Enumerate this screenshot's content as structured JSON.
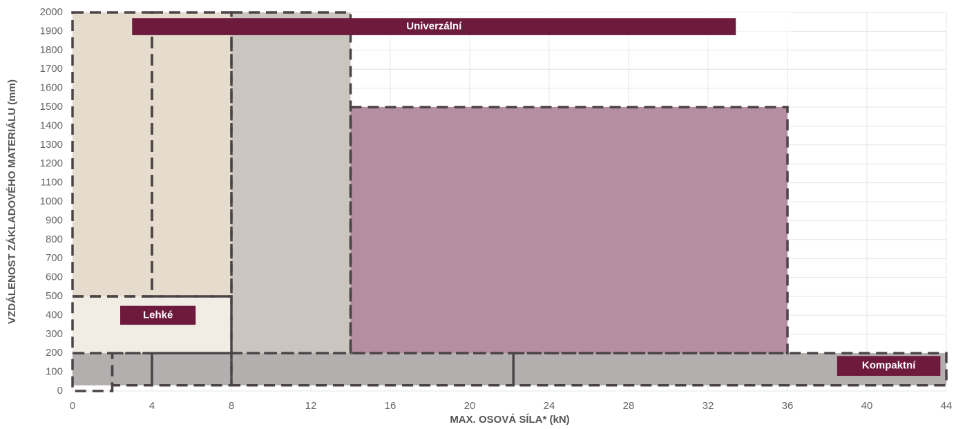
{
  "chart_data": {
    "type": "range",
    "xlabel": "MAX. OSOVÁ SÍLA* (kN)",
    "ylabel": "VZDÁLENOST ZÁKLADOVÉHO MATERIÁLU (mm)",
    "xlim": [
      0,
      44
    ],
    "ylim": [
      0,
      2000
    ],
    "xticks": [
      0,
      4,
      8,
      12,
      16,
      20,
      24,
      28,
      32,
      36,
      40,
      44
    ],
    "yticks": [
      0,
      100,
      200,
      300,
      400,
      500,
      600,
      700,
      800,
      900,
      1000,
      1100,
      1200,
      1300,
      1400,
      1500,
      1600,
      1700,
      1800,
      1900,
      2000
    ],
    "grid": true,
    "regions": [
      {
        "x": [
          14,
          36
        ],
        "y": [
          200,
          1500
        ],
        "color": "#b68ea3"
      },
      {
        "x": [
          8,
          14
        ],
        "y": [
          200,
          2000
        ],
        "color": "#cbc5bf"
      },
      {
        "x": [
          0,
          8
        ],
        "y": [
          500,
          2000
        ],
        "color": "#e6dccd"
      },
      {
        "x": [
          0,
          8
        ],
        "y": [
          200,
          500
        ],
        "color": "#f1ece4"
      },
      {
        "x": [
          0,
          44
        ],
        "y": [
          30,
          200
        ],
        "color": "#b3afaf"
      }
    ],
    "boxes": [
      {
        "x": [
          0,
          4
        ],
        "y": [
          500,
          2000
        ]
      },
      {
        "x": [
          4,
          8
        ],
        "y": [
          500,
          2000
        ]
      },
      {
        "x": [
          8,
          14
        ],
        "y": [
          200,
          2000
        ]
      },
      {
        "x": [
          0,
          8
        ],
        "y": [
          200,
          500
        ]
      },
      {
        "x": [
          14,
          36
        ],
        "y": [
          200,
          1500
        ]
      },
      {
        "x": [
          0,
          2
        ],
        "y": [
          0,
          200
        ]
      },
      {
        "x": [
          2,
          4
        ],
        "y": [
          30,
          200
        ]
      },
      {
        "x": [
          4,
          8
        ],
        "y": [
          30,
          200
        ]
      },
      {
        "x": [
          8,
          22.2
        ],
        "y": [
          30,
          200
        ]
      },
      {
        "x": [
          22.2,
          44
        ],
        "y": [
          30,
          200
        ]
      }
    ],
    "bars": [
      {
        "name": "Univerzální",
        "x": [
          3,
          33.4
        ],
        "y": [
          1880,
          1970
        ],
        "color": "#6e1a3c"
      },
      {
        "name": "Lehké",
        "x": [
          2.4,
          6.2
        ],
        "y": [
          350,
          450
        ],
        "color": "#6e1a3c"
      },
      {
        "name": "Kompaktní",
        "x": [
          38.5,
          43.7
        ],
        "y": [
          80,
          185
        ],
        "color": "#6e1a3c"
      }
    ]
  }
}
